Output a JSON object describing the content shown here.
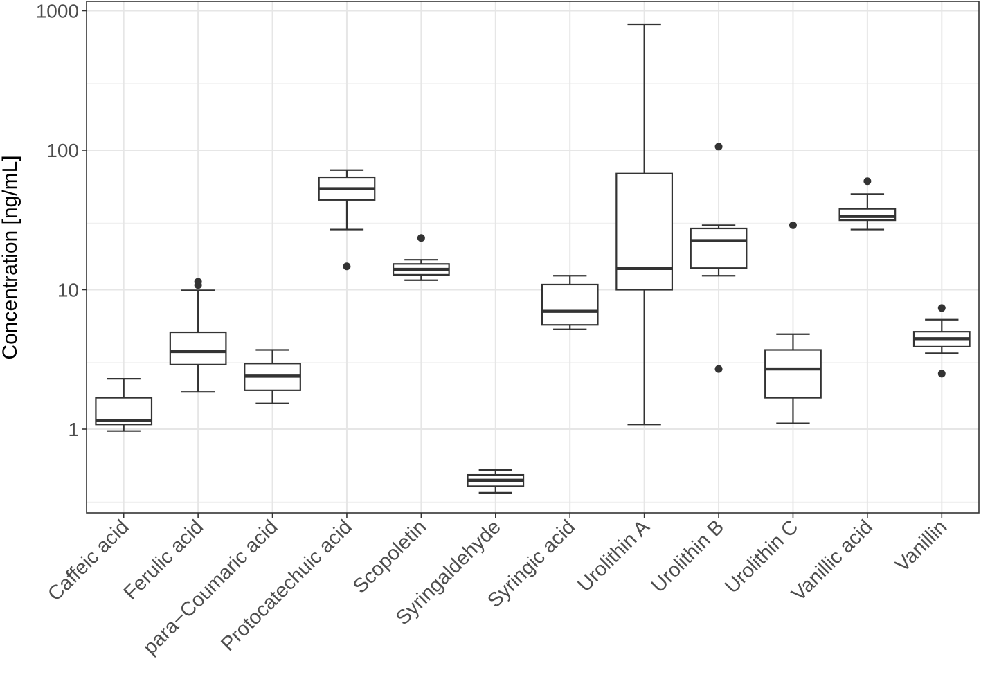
{
  "chart_data": {
    "type": "boxplot",
    "title": "",
    "xlabel": "",
    "ylabel": "Concentration [ng/mL]",
    "yscale": "log10",
    "ylim": [
      0.25,
      1000
    ],
    "yticks": [
      {
        "value": 1,
        "label": "1"
      },
      {
        "value": 10,
        "label": "10"
      },
      {
        "value": 100,
        "label": "100"
      },
      {
        "value": 1000,
        "label": "1000"
      }
    ],
    "categories": [
      "Caffeic acid",
      "Ferulic acid",
      "para−Coumaric acid",
      "Protocatechuic acid",
      "Scopoletin",
      "Syringaldehyde",
      "Syringic acid",
      "Urolithin A",
      "Urolithin B",
      "Urolithin C",
      "Vanillic acid",
      "Vanillin"
    ],
    "boxes": [
      {
        "name": "Caffeic acid",
        "whisker_low": 0.97,
        "q1": 1.08,
        "median": 1.15,
        "q3": 1.68,
        "whisker_high": 2.3,
        "outliers": []
      },
      {
        "name": "Ferulic acid",
        "whisker_low": 1.85,
        "q1": 2.9,
        "median": 3.6,
        "q3": 4.95,
        "whisker_high": 9.9,
        "outliers": [
          10.8,
          11.4
        ]
      },
      {
        "name": "para−Coumaric acid",
        "whisker_low": 1.53,
        "q1": 1.9,
        "median": 2.4,
        "q3": 2.95,
        "whisker_high": 3.7,
        "outliers": []
      },
      {
        "name": "Protocatechuic acid",
        "whisker_low": 27,
        "q1": 44,
        "median": 53,
        "q3": 64,
        "whisker_high": 72,
        "outliers": [
          14.7
        ]
      },
      {
        "name": "Scopoletin",
        "whisker_low": 11.7,
        "q1": 12.8,
        "median": 14,
        "q3": 15.3,
        "whisker_high": 16.4,
        "outliers": [
          23.5
        ]
      },
      {
        "name": "Syringaldehyde",
        "whisker_low": 0.35,
        "q1": 0.39,
        "median": 0.43,
        "q3": 0.47,
        "whisker_high": 0.51,
        "outliers": []
      },
      {
        "name": "Syringic acid",
        "whisker_low": 5.2,
        "q1": 5.6,
        "median": 7.0,
        "q3": 10.9,
        "whisker_high": 12.6,
        "outliers": []
      },
      {
        "name": "Urolithin A",
        "whisker_low": 1.08,
        "q1": 10,
        "median": 14.2,
        "q3": 68,
        "whisker_high": 800,
        "outliers": []
      },
      {
        "name": "Urolithin B",
        "whisker_low": 12.6,
        "q1": 14.3,
        "median": 22.5,
        "q3": 27.5,
        "whisker_high": 29,
        "outliers": [
          2.7,
          106
        ]
      },
      {
        "name": "Urolithin C",
        "whisker_low": 1.1,
        "q1": 1.68,
        "median": 2.7,
        "q3": 3.7,
        "whisker_high": 4.8,
        "outliers": [
          29
        ]
      },
      {
        "name": "Vanillic acid",
        "whisker_low": 27,
        "q1": 31.5,
        "median": 33.5,
        "q3": 38,
        "whisker_high": 48.5,
        "outliers": [
          60
        ]
      },
      {
        "name": "Vanillin",
        "whisker_low": 3.5,
        "q1": 3.9,
        "median": 4.45,
        "q3": 5.0,
        "whisker_high": 6.1,
        "outliers": [
          2.5,
          7.4
        ]
      }
    ],
    "grid": true,
    "legend": "none"
  }
}
